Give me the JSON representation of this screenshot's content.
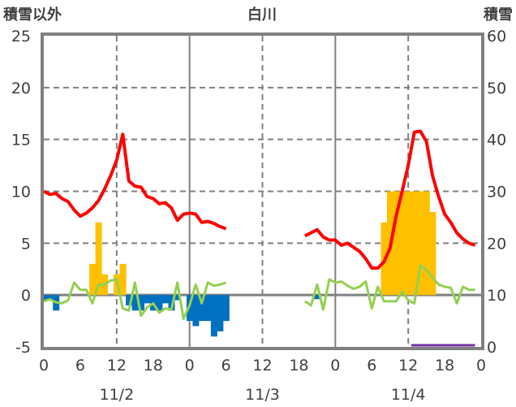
{
  "chart_data": {
    "type": "bar+line",
    "title": "白川",
    "ylabel_left": "積雪以外",
    "ylabel_right": "積雪",
    "ylim_left": [
      -5,
      25
    ],
    "ylim_right": [
      0,
      60
    ],
    "yticks_left": [
      "25",
      "20",
      "15",
      "10",
      "5",
      "0",
      "-5"
    ],
    "yticks_right": [
      "60",
      "50",
      "40",
      "30",
      "20",
      "10",
      "0"
    ],
    "xlim_hours": [
      0,
      72
    ],
    "xticks": [
      "0",
      "6",
      "12",
      "18",
      "0",
      "6",
      "12",
      "18",
      "0",
      "6",
      "12",
      "18",
      "0"
    ],
    "dates": [
      "11/2",
      "11/3",
      "11/4"
    ],
    "grid": true,
    "colors": {
      "positive_bar": "#FFC000",
      "negative_bar": "#0070C0",
      "red_line": "#FF0000",
      "green_line": "#92D050",
      "purple_line": "#7030A0",
      "axis": "#808080"
    },
    "bars_positive": {
      "hours": [
        8,
        9,
        10,
        12,
        13,
        56,
        57,
        58,
        59,
        60,
        61,
        62,
        63,
        64
      ],
      "values": [
        3,
        7,
        2,
        2,
        3,
        7,
        10,
        10,
        10,
        10,
        10,
        10,
        10,
        8
      ]
    },
    "bars_negative": {
      "hours": [
        0,
        1,
        2,
        14,
        15,
        16,
        17,
        18,
        19,
        20,
        21,
        22,
        24,
        25,
        26,
        27,
        28,
        29,
        30,
        45
      ],
      "values": [
        -0.5,
        -0.5,
        -1.5,
        -1,
        -1.5,
        -1.5,
        -0.8,
        -1.5,
        -1.5,
        -0.8,
        -1.5,
        -0.5,
        -2.5,
        -3,
        -2.5,
        -2.5,
        -4,
        -3.5,
        -2.5,
        -0.4
      ]
    },
    "red_line": {
      "segments": [
        {
          "start": 0,
          "values": [
            10,
            9.7,
            9.8,
            9.3,
            9.0,
            8.2,
            7.6,
            7.9,
            8.4,
            9.1,
            10.2,
            11.5,
            13,
            15.5,
            11,
            10.5,
            10.4,
            9.5,
            9.3,
            8.8,
            8.9,
            8.4,
            7.2,
            7.8,
            7.9,
            7.8,
            7.0,
            7.1,
            6.9,
            6.6,
            6.4
          ]
        },
        {
          "start": 43,
          "values": [
            5.7,
            6.0,
            6.3,
            5.6,
            5.3,
            5.3,
            4.8,
            5.0,
            4.6,
            4.2,
            3.5,
            2.6,
            2.6,
            3.2,
            4.5,
            7.6,
            10,
            12.5,
            15.7,
            15.8,
            14.8,
            11.5,
            9.5,
            7.8,
            7,
            6,
            5.4,
            5.0,
            4.8
          ]
        }
      ]
    },
    "green_line": {
      "segments": [
        {
          "start": 0,
          "values": [
            -0.6,
            -0.4,
            -0.7,
            -0.8,
            -0.5,
            1.2,
            0.5,
            0.5,
            -0.8,
            1.0,
            1.0,
            1.4,
            1.5,
            -1.3,
            -1.5,
            1.2,
            -2.0,
            -1.2,
            -0.8,
            -1.7,
            -1.3,
            -1.4,
            1.2,
            -2.3,
            -1.0,
            1.0,
            -0.8,
            1.2,
            0.9,
            1.0,
            1.2
          ]
        },
        {
          "start": 43,
          "values": [
            -0.6,
            -1.0,
            1.0,
            -1.4,
            1.5,
            1.2,
            1.3,
            0.9,
            0.6,
            0.8,
            1.3,
            -1.3,
            0.8,
            -0.6,
            -0.6,
            -0.6,
            0.3,
            -0.5,
            -0.8,
            2.8,
            2.4,
            1.7,
            1.0,
            0.8,
            0.7,
            -0.8,
            0.8,
            0.5,
            0.5
          ]
        }
      ]
    },
    "purple_line_right_axis": {
      "start": 60.5,
      "end": 71,
      "value": 0
    }
  }
}
